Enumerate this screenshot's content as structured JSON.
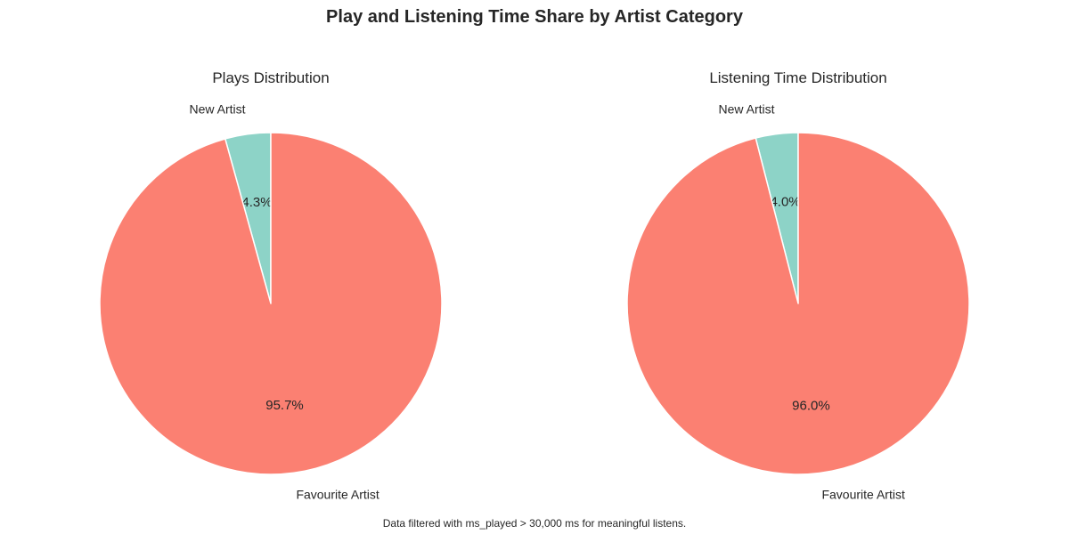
{
  "title": "Play and Listening Time Share by Artist Category",
  "footnote": "Data filtered with ms_played > 30,000 ms for meaningful listens.",
  "colors": {
    "New Artist": "#8dd3c7",
    "Favourite Artist": "#fb8072",
    "edge": "#ffffff"
  },
  "chart_data": [
    {
      "type": "pie",
      "title": "Plays Distribution",
      "labels": [
        "New Artist",
        "Favourite Artist"
      ],
      "values": [
        4.3,
        95.7
      ],
      "value_labels": [
        "4.3%",
        "95.7%"
      ],
      "start_angle": "top, counter-clockwise"
    },
    {
      "type": "pie",
      "title": "Listening Time Distribution",
      "labels": [
        "New Artist",
        "Favourite Artist"
      ],
      "values": [
        4.0,
        96.0
      ],
      "value_labels": [
        "4.0%",
        "96.0%"
      ],
      "start_angle": "top, counter-clockwise"
    }
  ]
}
